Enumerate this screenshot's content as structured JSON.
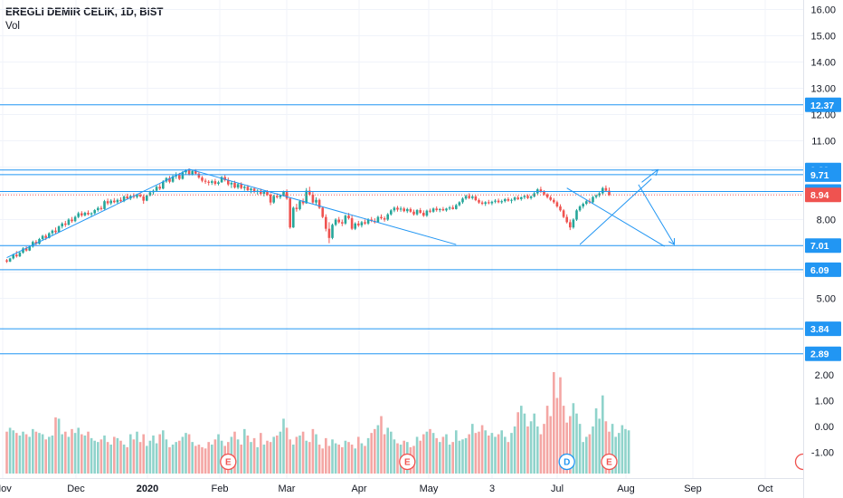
{
  "header": {
    "symbol": "EREGLI DEMIR CELIK, 1D, BIST",
    "volume_label": "Vol"
  },
  "colors": {
    "up": "#26a69a",
    "down": "#ef5350",
    "up_volume": "#8fd3cb",
    "down_volume": "#f4a6a4",
    "drawing": "#2196f3",
    "current_price": "#ef5350",
    "earnings": "#ef5350",
    "dividend": "#2196f3"
  },
  "chart_data": {
    "type": "candlestick",
    "price_axis": {
      "ticks": [
        "16.00",
        "15.00",
        "14.00",
        "13.00",
        "12.00",
        "11.00",
        "10.00",
        "9.00",
        "8.00",
        "7.00",
        "6.00",
        "5.00"
      ],
      "ylim": [
        4.75,
        16.4
      ]
    },
    "volume_axis": {
      "ticks": [
        "2.00",
        "1.00",
        "0.00",
        "-1.00"
      ]
    },
    "time_axis": {
      "ticks": [
        "Nov",
        "Dec",
        "2020",
        "Feb",
        "Mar",
        "Apr",
        "May",
        "3",
        "Jul",
        "Aug",
        "Sep",
        "Oct"
      ]
    },
    "horizontal_levels": [
      {
        "value": 12.37,
        "label": "12.37"
      },
      {
        "value": 9.89,
        "label": "9.89"
      },
      {
        "value": 9.71,
        "label": "9.71"
      },
      {
        "value": 9.07,
        "label": "9.07"
      },
      {
        "value": 7.01,
        "label": "7.01"
      },
      {
        "value": 6.09,
        "label": "6.09"
      },
      {
        "value": 3.84,
        "label": "3.84"
      },
      {
        "value": 2.89,
        "label": "2.89"
      }
    ],
    "current_price": {
      "value": 8.94,
      "label": "8.94"
    },
    "events": [
      {
        "type": "earnings",
        "label": "E",
        "index": 68
      },
      {
        "type": "earnings",
        "label": "E",
        "index": 123
      },
      {
        "type": "dividend",
        "label": "D",
        "index": 172
      },
      {
        "type": "earnings",
        "label": "E",
        "index": 185
      }
    ],
    "trendlines": [
      {
        "points": [
          [
            0,
            6.55
          ],
          [
            56,
            9.92
          ]
        ]
      },
      {
        "points": [
          [
            56,
            9.92
          ],
          [
            138,
            7.05
          ]
        ]
      },
      {
        "points": [
          [
            172,
            9.2
          ],
          [
            202,
            6.98
          ]
        ]
      },
      {
        "points": [
          [
            176,
            7.05
          ],
          [
            198,
            9.55
          ]
        ]
      },
      {
        "points": [
          [
            195,
            9.42
          ],
          [
            200,
            9.9
          ]
        ]
      },
      {
        "points": [
          [
            194,
            9.33
          ],
          [
            205,
            7.05
          ]
        ]
      }
    ],
    "candles": [
      [
        6.45,
        6.5,
        6.35,
        6.4
      ],
      [
        6.4,
        6.55,
        6.38,
        6.52
      ],
      [
        6.52,
        6.7,
        6.48,
        6.66
      ],
      [
        6.66,
        6.8,
        6.55,
        6.6
      ],
      [
        6.6,
        6.78,
        6.57,
        6.74
      ],
      [
        6.74,
        6.95,
        6.7,
        6.9
      ],
      [
        6.9,
        6.98,
        6.78,
        6.82
      ],
      [
        6.82,
        7.0,
        6.8,
        6.97
      ],
      [
        6.97,
        7.2,
        6.93,
        7.15
      ],
      [
        7.15,
        7.22,
        7.02,
        7.08
      ],
      [
        7.08,
        7.3,
        7.05,
        7.26
      ],
      [
        7.26,
        7.42,
        7.2,
        7.38
      ],
      [
        7.38,
        7.45,
        7.22,
        7.3
      ],
      [
        7.3,
        7.52,
        7.28,
        7.48
      ],
      [
        7.48,
        7.62,
        7.4,
        7.58
      ],
      [
        7.58,
        7.7,
        7.45,
        7.52
      ],
      [
        7.52,
        7.78,
        7.5,
        7.74
      ],
      [
        7.74,
        7.9,
        7.66,
        7.85
      ],
      [
        7.85,
        7.95,
        7.72,
        7.8
      ],
      [
        7.8,
        8.05,
        7.78,
        8.0
      ],
      [
        8.0,
        8.1,
        7.88,
        7.94
      ],
      [
        7.94,
        8.15,
        7.9,
        8.1
      ],
      [
        8.1,
        8.3,
        8.05,
        8.24
      ],
      [
        8.24,
        8.32,
        8.1,
        8.16
      ],
      [
        8.16,
        8.3,
        8.12,
        8.26
      ],
      [
        8.26,
        8.35,
        8.16,
        8.2
      ],
      [
        8.2,
        8.28,
        8.1,
        8.24
      ],
      [
        8.24,
        8.4,
        8.2,
        8.36
      ],
      [
        8.36,
        8.5,
        8.3,
        8.44
      ],
      [
        8.44,
        8.52,
        8.34,
        8.4
      ],
      [
        8.4,
        8.75,
        8.38,
        8.7
      ],
      [
        8.7,
        8.8,
        8.55,
        8.62
      ],
      [
        8.62,
        8.78,
        8.55,
        8.72
      ],
      [
        8.72,
        8.82,
        8.62,
        8.66
      ],
      [
        8.66,
        8.8,
        8.6,
        8.75
      ],
      [
        8.75,
        8.85,
        8.65,
        8.7
      ],
      [
        8.7,
        8.92,
        8.66,
        8.88
      ],
      [
        8.88,
        8.98,
        8.76,
        8.8
      ],
      [
        8.8,
        8.95,
        8.74,
        8.9
      ],
      [
        8.9,
        9.0,
        8.8,
        8.86
      ],
      [
        8.86,
        8.98,
        8.8,
        8.94
      ],
      [
        8.94,
        9.02,
        8.84,
        8.88
      ],
      [
        8.88,
        8.96,
        8.6,
        8.72
      ],
      [
        8.72,
        8.95,
        8.7,
        8.92
      ],
      [
        8.92,
        9.1,
        8.88,
        9.04
      ],
      [
        9.04,
        9.15,
        8.95,
        9.1
      ],
      [
        9.1,
        9.3,
        9.05,
        9.25
      ],
      [
        9.25,
        9.35,
        9.12,
        9.18
      ],
      [
        9.18,
        9.5,
        9.15,
        9.45
      ],
      [
        9.45,
        9.62,
        9.4,
        9.58
      ],
      [
        9.58,
        9.66,
        9.38,
        9.44
      ],
      [
        9.44,
        9.7,
        9.4,
        9.65
      ],
      [
        9.65,
        9.8,
        9.55,
        9.72
      ],
      [
        9.72,
        9.78,
        9.5,
        9.55
      ],
      [
        9.55,
        9.85,
        9.52,
        9.8
      ],
      [
        9.8,
        9.92,
        9.7,
        9.88
      ],
      [
        9.88,
        9.95,
        9.68,
        9.72
      ],
      [
        9.72,
        9.9,
        9.68,
        9.85
      ],
      [
        9.85,
        9.92,
        9.7,
        9.75
      ],
      [
        9.75,
        9.82,
        9.55,
        9.6
      ],
      [
        9.6,
        9.66,
        9.42,
        9.48
      ],
      [
        9.48,
        9.56,
        9.36,
        9.44
      ],
      [
        9.44,
        9.5,
        9.3,
        9.4
      ],
      [
        9.4,
        9.52,
        9.32,
        9.46
      ],
      [
        9.46,
        9.55,
        9.3,
        9.36
      ],
      [
        9.36,
        9.48,
        9.3,
        9.42
      ],
      [
        9.42,
        9.66,
        9.4,
        9.62
      ],
      [
        9.62,
        9.7,
        9.45,
        9.5
      ],
      [
        9.5,
        9.6,
        9.28,
        9.34
      ],
      [
        9.34,
        9.45,
        9.2,
        9.4
      ],
      [
        9.4,
        9.48,
        9.18,
        9.22
      ],
      [
        9.22,
        9.4,
        9.16,
        9.35
      ],
      [
        9.35,
        9.42,
        9.15,
        9.2
      ],
      [
        9.2,
        9.3,
        9.1,
        9.25
      ],
      [
        9.25,
        9.32,
        9.05,
        9.12
      ],
      [
        9.12,
        9.22,
        9.0,
        9.18
      ],
      [
        9.18,
        9.24,
        9.0,
        9.05
      ],
      [
        9.05,
        9.15,
        8.95,
        9.1
      ],
      [
        9.1,
        9.18,
        8.92,
        8.98
      ],
      [
        8.98,
        9.1,
        8.88,
        9.05
      ],
      [
        9.05,
        9.12,
        8.9,
        8.95
      ],
      [
        8.95,
        9.0,
        8.55,
        8.65
      ],
      [
        8.65,
        8.95,
        8.6,
        8.9
      ],
      [
        8.9,
        9.0,
        8.8,
        8.85
      ],
      [
        8.85,
        8.95,
        8.78,
        8.92
      ],
      [
        8.92,
        9.1,
        8.88,
        9.05
      ],
      [
        9.05,
        9.15,
        8.75,
        8.8
      ],
      [
        8.8,
        8.84,
        7.65,
        7.7
      ],
      [
        7.7,
        8.5,
        7.68,
        8.45
      ],
      [
        8.45,
        8.6,
        8.3,
        8.4
      ],
      [
        8.4,
        8.75,
        8.35,
        8.7
      ],
      [
        8.7,
        8.8,
        8.55,
        8.62
      ],
      [
        8.62,
        9.2,
        8.6,
        9.1
      ],
      [
        9.1,
        9.25,
        8.9,
        8.95
      ],
      [
        8.95,
        9.05,
        8.6,
        8.65
      ],
      [
        8.65,
        8.85,
        8.55,
        8.75
      ],
      [
        8.75,
        8.8,
        8.4,
        8.45
      ],
      [
        8.45,
        8.5,
        8.05,
        8.1
      ],
      [
        8.1,
        8.2,
        7.55,
        7.65
      ],
      [
        7.65,
        7.9,
        7.1,
        7.3
      ],
      [
        7.3,
        7.85,
        7.25,
        7.8
      ],
      [
        7.8,
        8.05,
        7.75,
        8.0
      ],
      [
        8.0,
        8.1,
        7.85,
        7.9
      ],
      [
        7.9,
        8.0,
        7.75,
        7.85
      ],
      [
        7.85,
        8.2,
        7.8,
        8.15
      ],
      [
        8.15,
        8.25,
        8.0,
        8.05
      ],
      [
        8.05,
        8.15,
        7.6,
        7.65
      ],
      [
        7.65,
        7.9,
        7.6,
        7.85
      ],
      [
        7.85,
        7.95,
        7.72,
        7.78
      ],
      [
        7.78,
        7.95,
        7.7,
        7.9
      ],
      [
        7.9,
        8.0,
        7.8,
        7.85
      ],
      [
        7.85,
        8.05,
        7.8,
        8.0
      ],
      [
        8.0,
        8.1,
        7.9,
        7.95
      ],
      [
        7.95,
        8.05,
        7.85,
        7.9
      ],
      [
        7.9,
        8.15,
        7.88,
        8.1
      ],
      [
        8.1,
        8.2,
        8.0,
        8.05
      ],
      [
        8.05,
        8.12,
        7.92,
        8.0
      ],
      [
        8.0,
        8.25,
        7.95,
        8.2
      ],
      [
        8.2,
        8.4,
        8.15,
        8.35
      ],
      [
        8.35,
        8.5,
        8.28,
        8.45
      ],
      [
        8.45,
        8.52,
        8.3,
        8.38
      ],
      [
        8.38,
        8.5,
        8.3,
        8.42
      ],
      [
        8.42,
        8.48,
        8.28,
        8.32
      ],
      [
        8.32,
        8.45,
        8.25,
        8.4
      ],
      [
        8.4,
        8.46,
        8.26,
        8.3
      ],
      [
        8.3,
        8.38,
        8.15,
        8.2
      ],
      [
        8.2,
        8.4,
        8.15,
        8.36
      ],
      [
        8.36,
        8.44,
        8.22,
        8.26
      ],
      [
        8.26,
        8.35,
        8.1,
        8.15
      ],
      [
        8.15,
        8.38,
        8.1,
        8.34
      ],
      [
        8.34,
        8.42,
        8.25,
        8.3
      ],
      [
        8.3,
        8.46,
        8.26,
        8.42
      ],
      [
        8.42,
        8.5,
        8.3,
        8.36
      ],
      [
        8.36,
        8.44,
        8.28,
        8.4
      ],
      [
        8.4,
        8.48,
        8.32,
        8.35
      ],
      [
        8.35,
        8.45,
        8.3,
        8.42
      ],
      [
        8.42,
        8.52,
        8.36,
        8.46
      ],
      [
        8.46,
        8.55,
        8.38,
        8.4
      ],
      [
        8.4,
        8.6,
        8.38,
        8.55
      ],
      [
        8.55,
        8.7,
        8.5,
        8.66
      ],
      [
        8.66,
        8.85,
        8.6,
        8.8
      ],
      [
        8.8,
        8.95,
        8.75,
        8.9
      ],
      [
        8.9,
        9.0,
        8.78,
        8.82
      ],
      [
        8.82,
        8.95,
        8.76,
        8.88
      ],
      [
        8.88,
        8.94,
        8.7,
        8.74
      ],
      [
        8.74,
        8.8,
        8.6,
        8.65
      ],
      [
        8.65,
        8.72,
        8.55,
        8.6
      ],
      [
        8.6,
        8.7,
        8.52,
        8.66
      ],
      [
        8.66,
        8.75,
        8.58,
        8.62
      ],
      [
        8.62,
        8.72,
        8.55,
        8.68
      ],
      [
        8.68,
        8.78,
        8.62,
        8.72
      ],
      [
        8.72,
        8.8,
        8.62,
        8.66
      ],
      [
        8.66,
        8.76,
        8.6,
        8.7
      ],
      [
        8.7,
        8.82,
        8.65,
        8.78
      ],
      [
        8.78,
        8.85,
        8.68,
        8.72
      ],
      [
        8.72,
        8.8,
        8.62,
        8.75
      ],
      [
        8.75,
        8.88,
        8.7,
        8.84
      ],
      [
        8.84,
        8.92,
        8.74,
        8.78
      ],
      [
        8.78,
        8.88,
        8.72,
        8.85
      ],
      [
        8.85,
        8.95,
        8.78,
        8.9
      ],
      [
        8.9,
        8.96,
        8.78,
        8.82
      ],
      [
        8.82,
        8.92,
        8.76,
        8.88
      ],
      [
        8.88,
        9.05,
        8.84,
        9.0
      ],
      [
        9.0,
        9.2,
        8.95,
        9.15
      ],
      [
        9.15,
        9.25,
        9.02,
        9.08
      ],
      [
        9.08,
        9.12,
        8.92,
        8.96
      ],
      [
        8.96,
        9.0,
        8.8,
        8.85
      ],
      [
        8.85,
        8.92,
        8.7,
        8.75
      ],
      [
        8.75,
        8.82,
        8.6,
        8.66
      ],
      [
        8.66,
        8.72,
        8.45,
        8.5
      ],
      [
        8.5,
        8.58,
        8.3,
        8.35
      ],
      [
        8.35,
        8.4,
        8.05,
        8.1
      ],
      [
        8.1,
        8.2,
        7.85,
        7.9
      ],
      [
        7.9,
        8.0,
        7.6,
        7.7
      ],
      [
        7.7,
        8.05,
        7.65,
        8.0
      ],
      [
        8.0,
        8.4,
        7.95,
        8.35
      ],
      [
        8.35,
        8.55,
        8.3,
        8.5
      ],
      [
        8.5,
        8.65,
        8.42,
        8.6
      ],
      [
        8.6,
        8.75,
        8.55,
        8.7
      ],
      [
        8.7,
        8.8,
        8.6,
        8.66
      ],
      [
        8.66,
        8.9,
        8.62,
        8.86
      ],
      [
        8.86,
        8.96,
        8.8,
        8.92
      ],
      [
        8.92,
        9.05,
        8.85,
        9.0
      ],
      [
        9.0,
        9.25,
        8.95,
        9.2
      ],
      [
        9.2,
        9.3,
        9.05,
        9.1
      ],
      [
        9.1,
        9.22,
        8.9,
        8.94
      ]
    ],
    "volume": [
      -0.2,
      -0.05,
      -0.15,
      -0.25,
      -0.35,
      -0.2,
      -0.3,
      -0.4,
      -0.1,
      -0.2,
      -0.25,
      -0.3,
      -0.5,
      -0.4,
      -0.35,
      0.35,
      0.3,
      -0.3,
      -0.2,
      -0.4,
      -0.1,
      -0.25,
      -0.05,
      -0.3,
      -0.35,
      -0.2,
      -0.45,
      -0.55,
      -0.6,
      -0.5,
      -0.35,
      -0.6,
      -0.7,
      -0.4,
      -0.45,
      -0.55,
      -0.7,
      -0.8,
      -0.3,
      -0.5,
      -0.2,
      -0.6,
      -0.3,
      -0.75,
      -0.55,
      -0.35,
      -0.65,
      -0.3,
      -0.15,
      -0.5,
      -0.8,
      -0.7,
      -0.6,
      -0.55,
      -0.4,
      -0.25,
      -0.3,
      -0.6,
      -0.75,
      -0.7,
      -0.8,
      -0.85,
      -0.6,
      -0.7,
      -0.5,
      -0.3,
      -0.55,
      -0.75,
      -0.6,
      -0.4,
      -0.2,
      -0.5,
      -0.7,
      -0.1,
      -0.35,
      -0.6,
      -0.45,
      -0.8,
      -0.25,
      -0.7,
      -0.55,
      -0.6,
      -0.4,
      -0.35,
      -0.2,
      0.3,
      -0.05,
      -0.5,
      -0.7,
      -0.4,
      -0.35,
      -0.2,
      -0.55,
      -0.6,
      -0.1,
      -0.3,
      -0.7,
      -0.85,
      -0.45,
      -0.75,
      -0.5,
      -0.65,
      -0.7,
      -0.8,
      -0.55,
      -0.6,
      -0.7,
      -0.85,
      -0.4,
      -0.65,
      -0.75,
      -0.45,
      -0.25,
      -0.1,
      0.05,
      0.4,
      -0.3,
      -0.05,
      -0.2,
      -0.5,
      -0.65,
      -0.7,
      -0.55,
      -0.6,
      -0.8,
      -0.75,
      -0.4,
      -0.55,
      -0.3,
      -0.2,
      -0.1,
      -0.25,
      -0.45,
      -0.6,
      -0.4,
      -0.3,
      -0.7,
      -0.6,
      -0.15,
      -0.55,
      -0.5,
      -0.45,
      -0.3,
      0.1,
      -0.25,
      -0.2,
      0.05,
      -0.15,
      -0.35,
      -0.25,
      -0.4,
      -0.3,
      -0.15,
      -0.4,
      -0.6,
      -0.25,
      0.0,
      0.55,
      0.8,
      0.5,
      0.0,
      0.2,
      0.5,
      0.0,
      -0.3,
      0.1,
      0.8,
      0.4,
      2.1,
      1.1,
      1.9,
      0.8,
      0.15,
      0.4,
      0.9,
      0.5,
      0.1,
      -0.6,
      -0.4,
      -0.3,
      0.0,
      0.7,
      0.3,
      1.2,
      0.2,
      -0.2,
      0.1,
      -0.4,
      -0.25,
      0.05,
      -0.1,
      -0.15
    ]
  }
}
